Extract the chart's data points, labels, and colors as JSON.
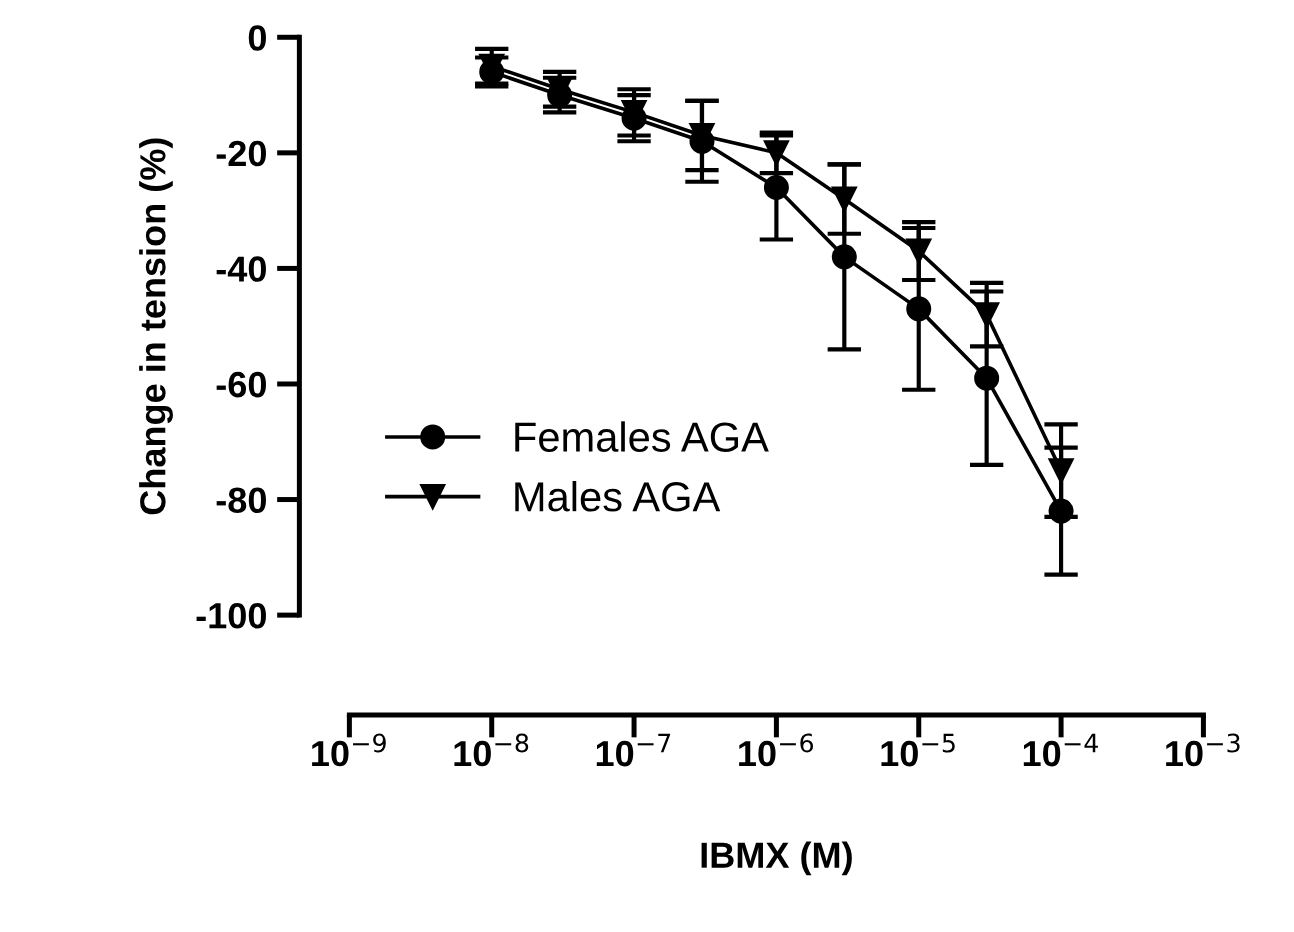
{
  "chart_data": {
    "type": "line",
    "xlabel": "IBMX (M)",
    "ylabel": "Change in tension (%)",
    "log": "x",
    "x": [
      1e-08,
      3e-08,
      1e-07,
      3e-07,
      1e-06,
      3e-06,
      1e-05,
      3e-05,
      0.0001
    ],
    "series": [
      {
        "name": "Females AGA",
        "color": "#000000",
        "marker": "circle",
        "values": [
          -6,
          -10,
          -14,
          -18,
          -26,
          -38,
          -47,
          -59,
          -82
        ],
        "errors": [
          2.5,
          3,
          4,
          7,
          9,
          16,
          14,
          15,
          11
        ]
      },
      {
        "name": "Males AGA",
        "color": "#000000",
        "marker": "triangle",
        "values": [
          -5,
          -9,
          -13,
          -17,
          -20,
          -28,
          -37,
          -48,
          -75
        ],
        "errors": [
          3,
          3,
          4,
          6,
          3.5,
          6,
          5,
          5.5,
          8
        ]
      }
    ],
    "xlim": [
      1e-09,
      0.001
    ],
    "xticks": [
      {
        "value": 1e-09,
        "label": "10$^{−9}$"
      },
      {
        "value": 1e-08,
        "label": "10$^{−8}$"
      },
      {
        "value": 1e-07,
        "label": "10$^{−7}$"
      },
      {
        "value": 1e-06,
        "label": "10$^{−6}$"
      },
      {
        "value": 1e-05,
        "label": "10$^{−5}$"
      },
      {
        "value": 0.0001,
        "label": "10$^{−4}$"
      },
      {
        "value": 0.001,
        "label": "10$^{−3}$"
      }
    ],
    "ylim": [
      -100,
      0
    ],
    "yticks": [
      -100,
      -80,
      -60,
      -40,
      -20,
      0
    ],
    "grid": false,
    "legend": "bottom left",
    "line_style": "solid"
  }
}
